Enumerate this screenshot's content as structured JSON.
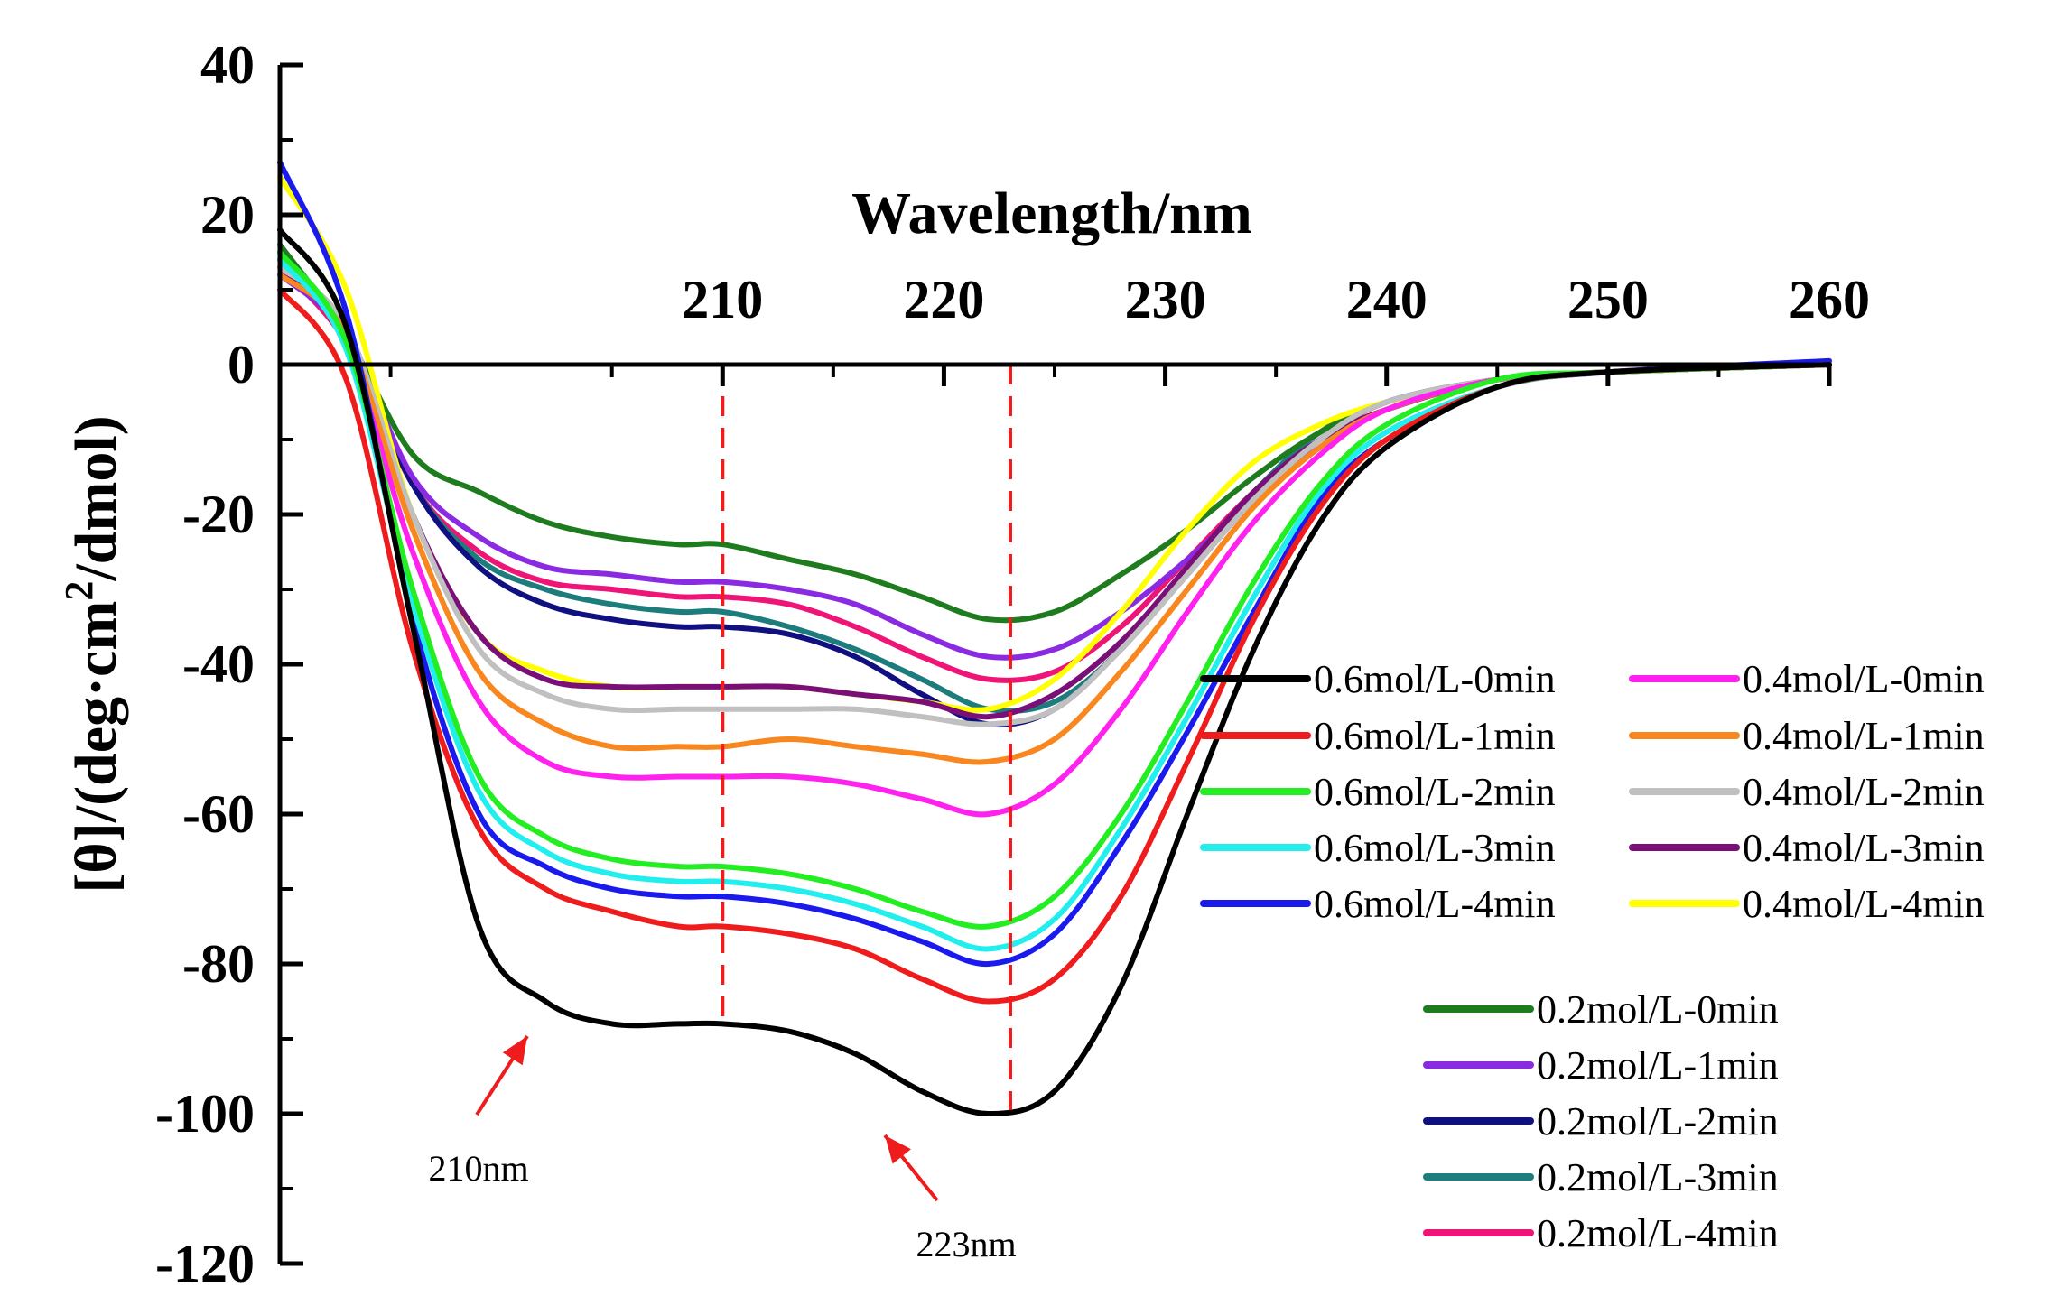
{
  "chart_data": {
    "type": "line",
    "xlabel": "Wavelength/nm",
    "ylabel": "[θ]/(deg·cm²/dmol)",
    "ylabel_parts": {
      "pre": "[θ]/(deg·cm",
      "sup": "2",
      "post": "/dmol)"
    },
    "xlim": [
      190,
      260
    ],
    "ylim": [
      -120,
      40
    ],
    "x_ticks": [
      210,
      220,
      230,
      240,
      250,
      260
    ],
    "x_tick_labels": [
      "210",
      "220",
      "230",
      "240",
      "250",
      "260"
    ],
    "y_ticks": [
      40,
      20,
      0,
      -20,
      -40,
      -60,
      -80,
      -100,
      -120
    ],
    "y_tick_labels": [
      "40",
      "20",
      "0",
      "-20",
      "-40",
      "-60",
      "-80",
      "-100",
      "-120"
    ],
    "x_axis_position": "y=0, tick labels above",
    "grid": false,
    "legend_placement": "right",
    "annotations": [
      {
        "text": "210nm",
        "x": 210,
        "y": -88,
        "line_color": "#ee1c1c",
        "style": "dashed vertical line with arrow"
      },
      {
        "text": "223nm",
        "x": 223,
        "y": -100,
        "line_color": "#ee1c1c",
        "style": "dashed vertical line with arrow"
      }
    ],
    "x": [
      190,
      193,
      196,
      199,
      202,
      205,
      208,
      210,
      213,
      216,
      219,
      222,
      225,
      228,
      231,
      234,
      237,
      240,
      245,
      250,
      260
    ],
    "series": [
      {
        "name": "0.6mol/L-0min",
        "color": "#000000",
        "values": [
          18,
          5,
          -35,
          -75,
          -85,
          -88,
          -88,
          -88,
          -89,
          -92,
          -97,
          -100,
          -97,
          -83,
          -60,
          -38,
          -21,
          -11,
          -3,
          -1,
          0
        ]
      },
      {
        "name": "0.6mol/L-1min",
        "color": "#ee1c1c",
        "values": [
          10,
          -2,
          -38,
          -62,
          -70,
          -73,
          -75,
          -75,
          -76,
          -78,
          -82,
          -85,
          -82,
          -71,
          -53,
          -34,
          -19,
          -10,
          -3,
          -1,
          0
        ]
      },
      {
        "name": "0.6mol/L-2min",
        "color": "#22ee22",
        "values": [
          15,
          3,
          -30,
          -55,
          -63,
          -66,
          -67,
          -67,
          -68,
          -70,
          -73,
          -75,
          -71,
          -60,
          -45,
          -29,
          -16,
          -8,
          -2,
          -1,
          0
        ]
      },
      {
        "name": "0.6mol/L-3min",
        "color": "#22eeee",
        "values": [
          14,
          2,
          -32,
          -57,
          -65,
          -68,
          -69,
          -69,
          -70,
          -72,
          -75,
          -78,
          -74,
          -62,
          -47,
          -31,
          -17,
          -9,
          -3,
          -1,
          0
        ]
      },
      {
        "name": "0.6mol/L-4min",
        "color": "#1a1aee",
        "values": [
          27,
          7,
          -34,
          -60,
          -67,
          -70,
          -71,
          -71,
          -72,
          -74,
          -77,
          -80,
          -76,
          -64,
          -49,
          -33,
          -18,
          -10,
          -3,
          -1,
          0.5
        ]
      },
      {
        "name": "0.4mol/L-0min",
        "color": "#ff22ee",
        "values": [
          15,
          3,
          -25,
          -45,
          -53,
          -55,
          -55,
          -55,
          -55,
          -56,
          -58,
          -60,
          -56,
          -46,
          -33,
          -21,
          -12,
          -6,
          -2,
          -1,
          0
        ]
      },
      {
        "name": "0.4mol/L-1min",
        "color": "#f7871e",
        "values": [
          12,
          4,
          -22,
          -41,
          -48,
          -51,
          -51,
          -51,
          -50,
          -51,
          -52,
          -53,
          -50,
          -41,
          -30,
          -19,
          -11,
          -6,
          -2,
          -1,
          0
        ]
      },
      {
        "name": "0.4mol/L-2min",
        "color": "#c0c0c0",
        "values": [
          13,
          5,
          -20,
          -38,
          -44,
          -46,
          -46,
          -46,
          -46,
          -46,
          -47,
          -48,
          -46,
          -38,
          -28,
          -18,
          -10,
          -5,
          -2,
          -1,
          0
        ]
      },
      {
        "name": "0.4mol/L-3min",
        "color": "#7a1077",
        "values": [
          12,
          5,
          -20,
          -36,
          -42,
          -43,
          -43,
          -43,
          -43,
          -44,
          -45,
          -47,
          -44,
          -37,
          -27,
          -17,
          -10,
          -6,
          -2,
          -1,
          0
        ]
      },
      {
        "name": "0.4mol/L-4min",
        "color": "#ffff00",
        "values": [
          25,
          10,
          -20,
          -36,
          -41,
          -43,
          -43,
          -43,
          -43,
          -44,
          -45,
          -46,
          -42,
          -33,
          -22,
          -13,
          -8,
          -5,
          -2,
          -1,
          0
        ]
      },
      {
        "name": "0.2mol/L-0min",
        "color": "#1e7c1e",
        "values": [
          16,
          4,
          -12,
          -17,
          -21,
          -23,
          -24,
          -24,
          -26,
          -28,
          -31,
          -34,
          -33,
          -28,
          -22,
          -15,
          -9,
          -5,
          -2,
          -1,
          0
        ]
      },
      {
        "name": "0.2mol/L-1min",
        "color": "#8a2be2",
        "values": [
          12,
          4,
          -15,
          -23,
          -27,
          -28,
          -29,
          -29,
          -30,
          -32,
          -36,
          -39,
          -38,
          -33,
          -26,
          -18,
          -11,
          -6,
          -2,
          -1,
          0
        ]
      },
      {
        "name": "0.2mol/L-2min",
        "color": "#101080",
        "values": [
          14,
          4,
          -16,
          -27,
          -32,
          -34,
          -35,
          -35,
          -36,
          -39,
          -44,
          -48,
          -46,
          -38,
          -28,
          -18,
          -10,
          -5,
          -2,
          -1,
          0
        ]
      },
      {
        "name": "0.2mol/L-3min",
        "color": "#1d7d7d",
        "values": [
          15,
          4,
          -16,
          -26,
          -30,
          -32,
          -33,
          -33,
          -35,
          -38,
          -42,
          -46,
          -45,
          -38,
          -27,
          -17,
          -9,
          -5,
          -2,
          -1,
          0
        ]
      },
      {
        "name": "0.2mol/L-4min",
        "color": "#ee1577",
        "values": [
          13,
          3,
          -16,
          -25,
          -29,
          -30,
          -31,
          -31,
          -32,
          -35,
          -39,
          -42,
          -41,
          -35,
          -26,
          -17,
          -10,
          -5,
          -2,
          -1,
          0
        ]
      }
    ]
  }
}
